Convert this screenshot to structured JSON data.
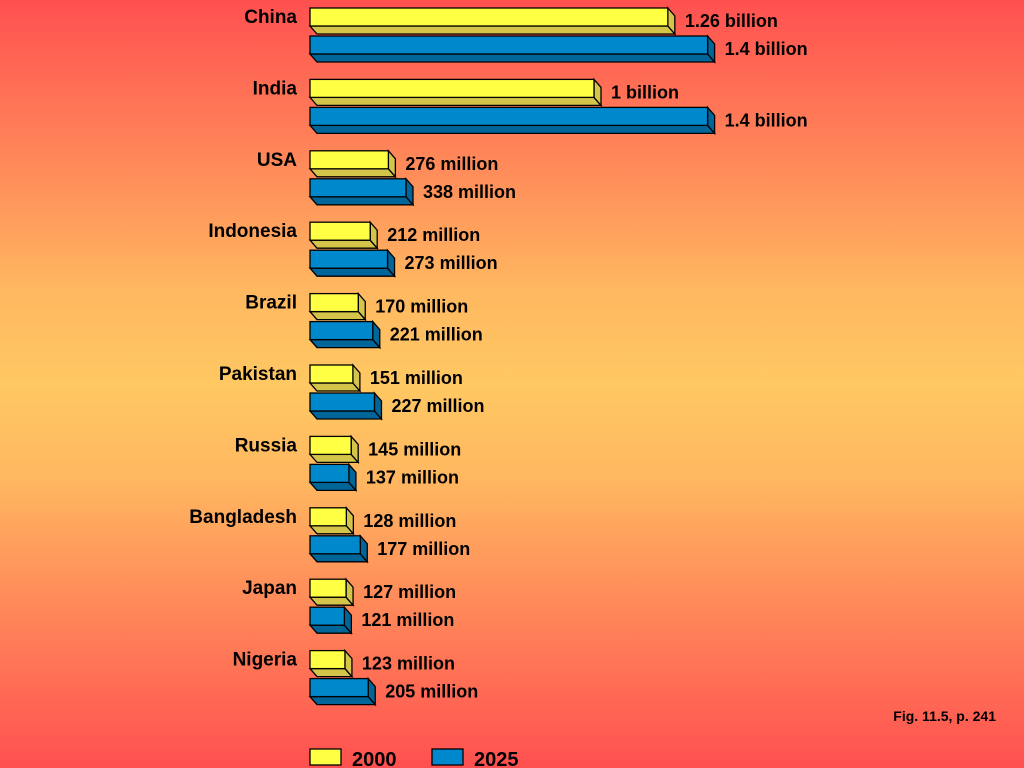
{
  "chart_data": {
    "type": "bar",
    "orientation": "horizontal",
    "title": "",
    "unit": "million",
    "categories": [
      "China",
      "India",
      "USA",
      "Indonesia",
      "Brazil",
      "Pakistan",
      "Russia",
      "Bangladesh",
      "Japan",
      "Nigeria"
    ],
    "series": [
      {
        "name": "2000",
        "color": "#ffff44",
        "values": [
          1260,
          1000,
          276,
          212,
          170,
          151,
          145,
          128,
          127,
          123
        ],
        "labels": [
          "1.26 billion",
          "1 billion",
          "276 million",
          "212 million",
          "170 million",
          "151 million",
          "145 million",
          "128 million",
          "127 million",
          "123 million"
        ]
      },
      {
        "name": "2025",
        "color": "#0088cc",
        "values": [
          1400,
          1400,
          338,
          273,
          221,
          227,
          137,
          177,
          121,
          205
        ],
        "labels": [
          "1.4 billion",
          "1.4 billion",
          "338 million",
          "273 million",
          "221 million",
          "227 million",
          "137 million",
          "177 million",
          "121 million",
          "205 million"
        ]
      }
    ],
    "legend": "bottom-left"
  },
  "caption": "Fig. 11.5, p. 241"
}
